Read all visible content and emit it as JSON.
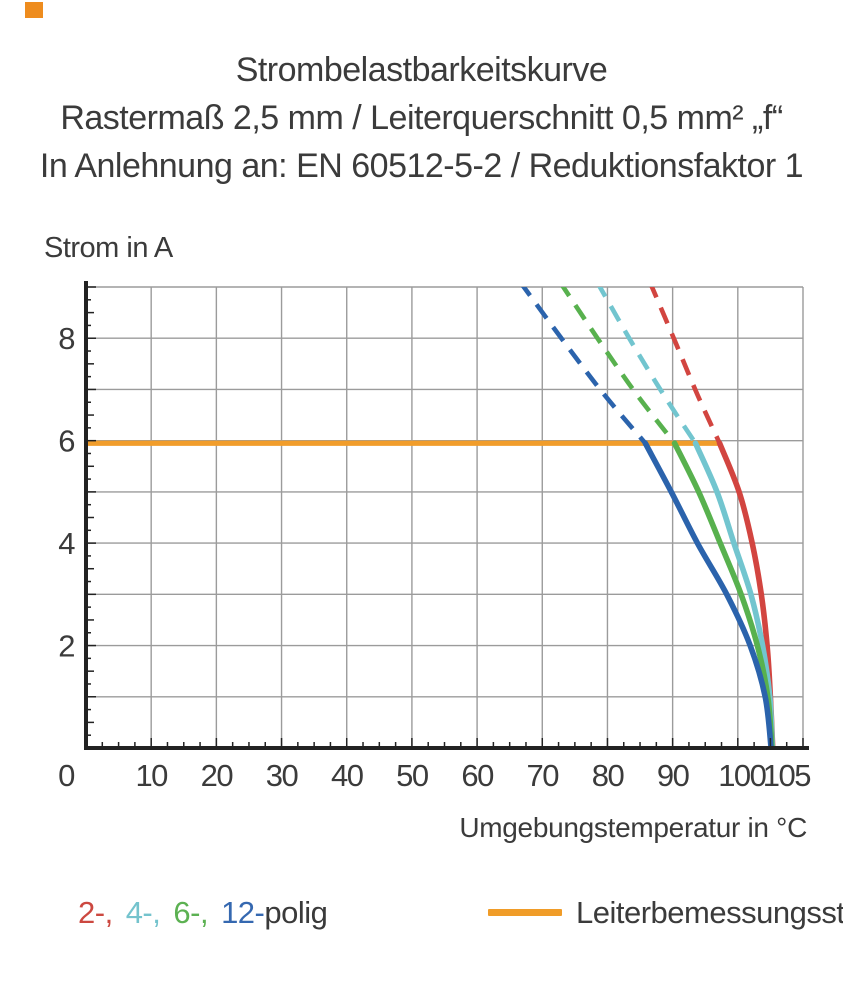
{
  "page": {
    "title_lines": [
      "Strombelastbarkeitskurve",
      "Rastermaß 2,5 mm / Leiterquerschnitt 0,5 mm² „f“",
      "In Anlehnung an: EN 60512-5-2 / Reduktionsfaktor 1"
    ]
  },
  "legend": {
    "pole_items": [
      {
        "label": "2-,",
        "color": "#cc4840"
      },
      {
        "label": "4-,",
        "color": "#74c3cd"
      },
      {
        "label": "6-,",
        "color": "#5cb152"
      },
      {
        "label": "12-",
        "color": "#3568b0"
      },
      {
        "label": "polig",
        "color": "#3a3a3a"
      }
    ],
    "reference": {
      "label": "Leiterbemessungsstrom",
      "color": "#f09c28"
    }
  },
  "chart_data": {
    "type": "line",
    "title": "Strombelastbarkeitskurve",
    "xlabel": "Umgebungstemperatur in °C",
    "ylabel": "Strom in A",
    "xlim": [
      0,
      110
    ],
    "ylim": [
      0,
      9
    ],
    "x_tick_labels": [
      0,
      10,
      20,
      30,
      40,
      50,
      60,
      70,
      80,
      90,
      100,
      105
    ],
    "y_tick_labels": [
      0,
      2,
      4,
      6,
      8
    ],
    "x_grid_step": 10,
    "y_grid_step": 1,
    "x_minor_step": 2.5,
    "y_minor_step": 0.25,
    "grid": true,
    "colors": {
      "grid": "#9b9b9b",
      "axis": "#222222",
      "text": "#3b3b3b"
    },
    "reference_line": {
      "name": "Leiterbemessungsstrom",
      "y": 5.95,
      "x_start": 0,
      "x_end": 97.2,
      "color": "#f19d2b"
    },
    "series": [
      {
        "name": "2-polig",
        "color": "#d24540",
        "dashed": [
          [
            86.5,
            9.1
          ],
          [
            90.5,
            7.9
          ],
          [
            93.8,
            6.9
          ],
          [
            97.2,
            5.95
          ]
        ],
        "solid": [
          [
            97.2,
            5.95
          ],
          [
            100.2,
            5.0
          ],
          [
            102.2,
            4.0
          ],
          [
            103.6,
            3.0
          ],
          [
            104.5,
            2.0
          ],
          [
            105.0,
            1.0
          ],
          [
            105.35,
            0
          ]
        ]
      },
      {
        "name": "4-polig",
        "color": "#72c5cf",
        "dashed": [
          [
            78.4,
            9.1
          ],
          [
            83.8,
            7.9
          ],
          [
            88.6,
            6.9
          ],
          [
            93.5,
            5.95
          ]
        ],
        "solid": [
          [
            93.5,
            5.95
          ],
          [
            96.8,
            5.0
          ],
          [
            99.4,
            4.0
          ],
          [
            102.0,
            3.0
          ],
          [
            103.8,
            2.0
          ],
          [
            104.9,
            1.0
          ],
          [
            105.3,
            0
          ]
        ]
      },
      {
        "name": "6-polig",
        "color": "#58b14e",
        "dashed": [
          [
            72.7,
            9.1
          ],
          [
            79.0,
            7.9
          ],
          [
            84.5,
            6.9
          ],
          [
            90.3,
            5.95
          ]
        ],
        "solid": [
          [
            90.3,
            5.95
          ],
          [
            94.0,
            5.0
          ],
          [
            97.3,
            4.0
          ],
          [
            100.5,
            3.0
          ],
          [
            103.0,
            2.0
          ],
          [
            104.6,
            1.0
          ],
          [
            105.25,
            0
          ]
        ]
      },
      {
        "name": "12-polig",
        "color": "#2b63ac",
        "dashed": [
          [
            66.6,
            9.1
          ],
          [
            73.5,
            7.9
          ],
          [
            79.5,
            6.9
          ],
          [
            85.8,
            5.95
          ]
        ],
        "solid": [
          [
            85.8,
            5.95
          ],
          [
            89.8,
            5.0
          ],
          [
            93.8,
            4.0
          ],
          [
            98.3,
            3.0
          ],
          [
            101.9,
            2.0
          ],
          [
            104.2,
            1.0
          ],
          [
            105.1,
            0
          ]
        ]
      }
    ]
  }
}
